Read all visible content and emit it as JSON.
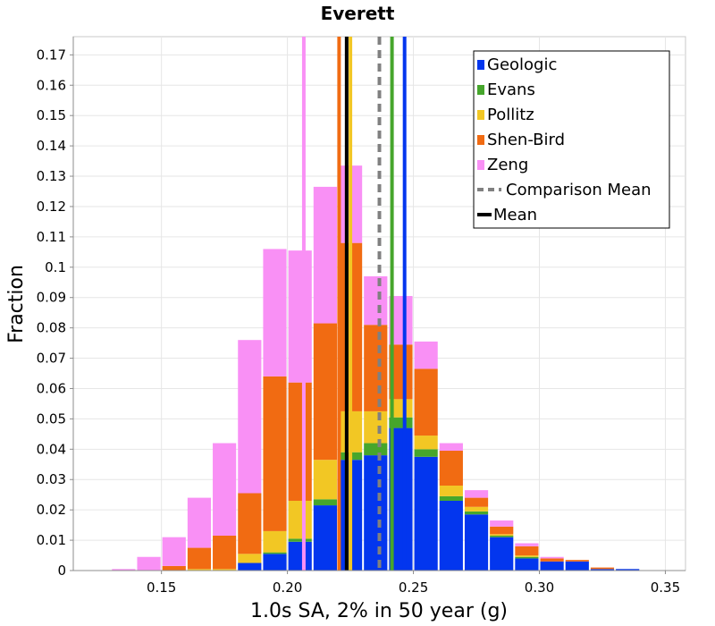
{
  "chart_data": {
    "type": "bar",
    "stacked": true,
    "title": "Everett",
    "xlabel": "1.0s SA, 2% in 50 year (g)",
    "ylabel": "Fraction",
    "xlim": [
      0.115,
      0.358
    ],
    "ylim": [
      0,
      0.176
    ],
    "bin_width": 0.01,
    "x_ticks": [
      {
        "value": 0.15,
        "label": "0.15"
      },
      {
        "value": 0.2,
        "label": "0.20"
      },
      {
        "value": 0.25,
        "label": "0.25"
      },
      {
        "value": 0.3,
        "label": "0.30"
      },
      {
        "value": 0.35,
        "label": "0.35"
      }
    ],
    "y_ticks": [
      {
        "value": 0,
        "label": "0"
      },
      {
        "value": 0.01,
        "label": "0.01"
      },
      {
        "value": 0.02,
        "label": "0.02"
      },
      {
        "value": 0.03,
        "label": "0.03"
      },
      {
        "value": 0.04,
        "label": "0.04"
      },
      {
        "value": 0.05,
        "label": "0.05"
      },
      {
        "value": 0.06,
        "label": "0.06"
      },
      {
        "value": 0.07,
        "label": "0.07"
      },
      {
        "value": 0.08,
        "label": "0.08"
      },
      {
        "value": 0.09,
        "label": "0.09"
      },
      {
        "value": 0.1,
        "label": "0.1"
      },
      {
        "value": 0.11,
        "label": "0.11"
      },
      {
        "value": 0.12,
        "label": "0.12"
      },
      {
        "value": 0.13,
        "label": "0.13"
      },
      {
        "value": 0.14,
        "label": "0.14"
      },
      {
        "value": 0.15,
        "label": "0.15"
      },
      {
        "value": 0.16,
        "label": "0.16"
      },
      {
        "value": 0.17,
        "label": "0.17"
      }
    ],
    "bins": [
      0.125,
      0.135,
      0.145,
      0.155,
      0.165,
      0.175,
      0.185,
      0.195,
      0.205,
      0.215,
      0.225,
      0.235,
      0.245,
      0.255,
      0.265,
      0.275,
      0.285,
      0.295,
      0.305,
      0.315,
      0.325,
      0.335,
      0.345
    ],
    "series": [
      {
        "name": "Geologic",
        "color": "#0336ee",
        "values": [
          0,
          0,
          0,
          0,
          0,
          0,
          0.0025,
          0.0055,
          0.0095,
          0.0215,
          0.0365,
          0.038,
          0.047,
          0.0375,
          0.023,
          0.0185,
          0.011,
          0.004,
          0.003,
          0.003,
          0.0005,
          0.0005,
          0
        ]
      },
      {
        "name": "Evans",
        "color": "#46a62c",
        "values": [
          0,
          0,
          0,
          0,
          0,
          0,
          0,
          0.0005,
          0.001,
          0.002,
          0.0025,
          0.004,
          0.0035,
          0.0025,
          0.0015,
          0.001,
          0.0005,
          0.0005,
          0,
          0,
          0,
          0,
          0
        ]
      },
      {
        "name": "Pollitz",
        "color": "#f2c724",
        "values": [
          0,
          0,
          0,
          0,
          0.0005,
          0.0005,
          0.003,
          0.007,
          0.0125,
          0.013,
          0.0135,
          0.0105,
          0.006,
          0.0045,
          0.0035,
          0.0015,
          0.0005,
          0.0005,
          0,
          0,
          0,
          0,
          0
        ]
      },
      {
        "name": "Shen-Bird",
        "color": "#f16b12",
        "values": [
          0,
          0,
          0,
          0.0015,
          0.007,
          0.011,
          0.02,
          0.051,
          0.039,
          0.045,
          0.0555,
          0.0285,
          0.018,
          0.022,
          0.0115,
          0.003,
          0.0025,
          0.003,
          0.001,
          0.0005,
          0.0005,
          0,
          0
        ]
      },
      {
        "name": "Zeng",
        "color": "#f990f5",
        "values": [
          0,
          0.0005,
          0.0045,
          0.0095,
          0.0165,
          0.0305,
          0.0505,
          0.042,
          0.0435,
          0.045,
          0.0255,
          0.016,
          0.016,
          0.009,
          0.0025,
          0.0025,
          0.002,
          0.001,
          0.0005,
          0,
          0,
          0,
          0
        ]
      }
    ],
    "vertical_lines": [
      {
        "name": "Zeng",
        "x": 0.2065,
        "color": "#f990f5",
        "dash": false
      },
      {
        "name": "Shen-Bird",
        "x": 0.2205,
        "color": "#f16b12",
        "dash": false
      },
      {
        "name": "Pollitz",
        "x": 0.225,
        "color": "#f2c724",
        "dash": false
      },
      {
        "name": "Comparison Mean",
        "x": 0.2365,
        "color": "#808080",
        "dash": true
      },
      {
        "name": "Evans",
        "x": 0.2415,
        "color": "#46a62c",
        "dash": false
      },
      {
        "name": "Geologic",
        "x": 0.2465,
        "color": "#0336ee",
        "dash": false
      },
      {
        "name": "Mean",
        "x": 0.2235,
        "color": "#000000",
        "dash": false
      }
    ],
    "legend": {
      "placement": "top-right",
      "entries": [
        {
          "label": "Geologic",
          "color": "#0336ee",
          "kind": "box"
        },
        {
          "label": "Evans",
          "color": "#46a62c",
          "kind": "box"
        },
        {
          "label": "Pollitz",
          "color": "#f2c724",
          "kind": "box"
        },
        {
          "label": "Shen-Bird",
          "color": "#f16b12",
          "kind": "box"
        },
        {
          "label": "Zeng",
          "color": "#f990f5",
          "kind": "box"
        },
        {
          "label": "Comparison Mean",
          "color": "#808080",
          "kind": "dash"
        },
        {
          "label": "Mean",
          "color": "#000000",
          "kind": "line"
        }
      ]
    },
    "grid": true
  }
}
